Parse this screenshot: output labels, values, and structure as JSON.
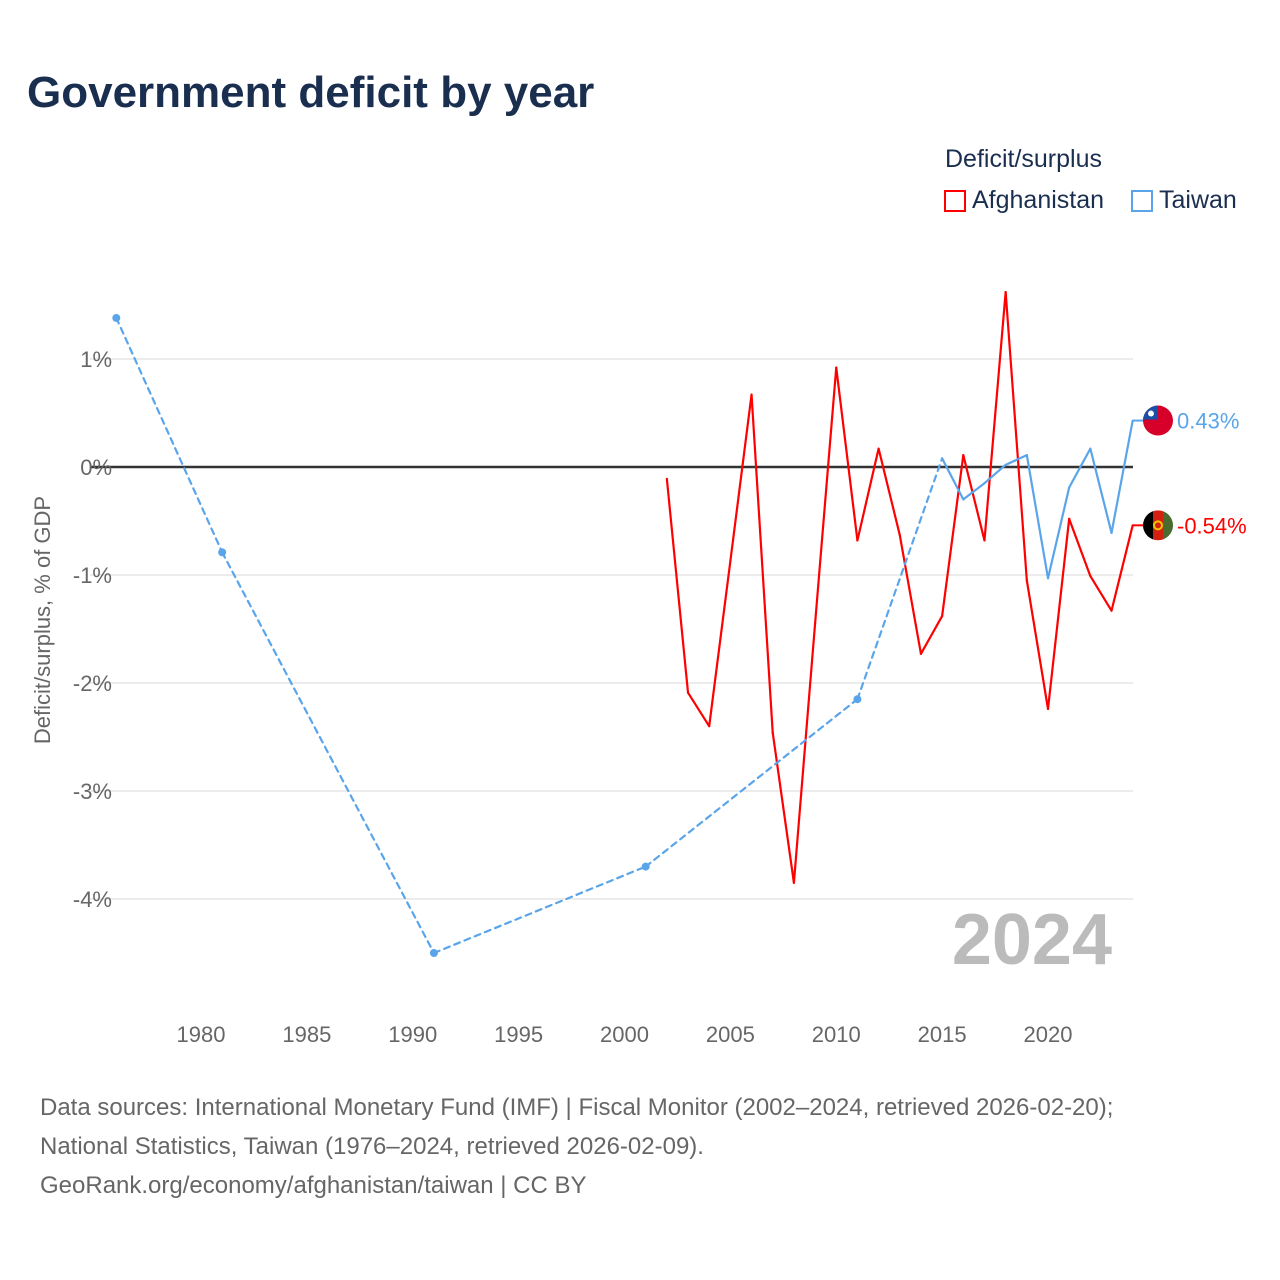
{
  "title": "Government deficit by year",
  "legend": {
    "title": "Deficit/surplus",
    "items": [
      "Afghanistan",
      "Taiwan"
    ]
  },
  "footer": [
    "Data sources: International Monetary Fund (IMF) | Fiscal Monitor (2002–2024, retrieved 2026-02-20);",
    "National Statistics, Taiwan (1976–2024, retrieved 2026-02-09).",
    "GeoRank.org/economy/afghanistan/taiwan | CC BY"
  ],
  "chart_data": {
    "type": "line",
    "title": "Government deficit by year",
    "ylabel": "Deficit/surplus, % of GDP",
    "xlim": [
      1975.5,
      2024
    ],
    "ylim": [
      -5,
      1.9
    ],
    "yticks": [
      1,
      0,
      -1,
      -2,
      -3,
      -4
    ],
    "ytick_labels": [
      "1%",
      "0%",
      "-1%",
      "-2%",
      "-3%",
      "-4%"
    ],
    "xticks": [
      1980,
      1985,
      1990,
      1995,
      2000,
      2005,
      2010,
      2015,
      2020
    ],
    "year_label": "2024",
    "series": [
      {
        "name": "Afghanistan",
        "color": "#ff0000",
        "end_label": "-0.54%",
        "x": [
          2002,
          2003,
          2004,
          2005,
          2006,
          2007,
          2008,
          2009,
          2010,
          2011,
          2012,
          2013,
          2014,
          2015,
          2016,
          2017,
          2018,
          2019,
          2020,
          2021,
          2022,
          2023,
          2024
        ],
        "values": [
          -0.11,
          -2.09,
          -2.4,
          -0.87,
          0.67,
          -2.46,
          -3.85,
          -1.45,
          0.92,
          -0.68,
          0.17,
          -0.63,
          -1.73,
          -1.38,
          0.11,
          -0.68,
          1.62,
          -1.05,
          -2.24,
          -0.48,
          -1.01,
          -1.33,
          -0.54
        ]
      },
      {
        "name": "Taiwan",
        "color": "#5aa5ea",
        "end_label": "0.43%",
        "x": [
          1976,
          1981,
          1991,
          2001,
          2011,
          2015,
          2016,
          2017,
          2018,
          2019,
          2020,
          2021,
          2022,
          2023,
          2024
        ],
        "values": [
          1.38,
          -0.79,
          -4.5,
          -3.7,
          -2.15,
          0.08,
          -0.3,
          -0.15,
          0.02,
          0.11,
          -1.03,
          -0.19,
          0.17,
          -0.61,
          0.43
        ]
      }
    ]
  }
}
